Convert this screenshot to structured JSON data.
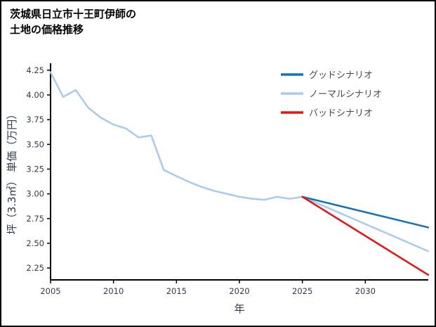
{
  "title": {
    "line1": "茨城県日立市十王町伊師の",
    "line2": "土地の価格推移"
  },
  "chart_data": {
    "type": "line",
    "title": "茨城県日立市十王町伊師の土地の価格推移",
    "xlabel": "年",
    "ylabel": "坪（3.3㎡） 単価（万円）",
    "xlim": [
      2005,
      2035
    ],
    "ylim": [
      2.13,
      4.32
    ],
    "xticks": [
      2005,
      2010,
      2015,
      2020,
      2025,
      2030
    ],
    "yticks": [
      2.25,
      2.5,
      2.75,
      3.0,
      3.25,
      3.5,
      3.75,
      4.0,
      4.25
    ],
    "grid": false,
    "legend_position": "upper right",
    "colors": {
      "good": "#1373b9",
      "normal": "#a7cbee",
      "bad": "#ee1111",
      "historical": "#a7cbee",
      "axis": "#000000"
    },
    "series": [
      {
        "id": "historical",
        "name": "",
        "color": "#a7cbee",
        "x": [
          2005,
          2006,
          2007,
          2008,
          2009,
          2010,
          2011,
          2012,
          2013,
          2014,
          2015,
          2016,
          2017,
          2018,
          2019,
          2020,
          2021,
          2022,
          2023,
          2024,
          2025
        ],
        "values": [
          4.23,
          3.98,
          4.05,
          3.87,
          3.77,
          3.7,
          3.66,
          3.57,
          3.59,
          3.24,
          3.18,
          3.12,
          3.07,
          3.03,
          3.0,
          2.97,
          2.95,
          2.94,
          2.97,
          2.95,
          2.97
        ]
      },
      {
        "id": "normal-scenario",
        "name": "ノーマルシナリオ",
        "color": "#a7cbee",
        "x": [
          2025,
          2035
        ],
        "values": [
          2.97,
          2.42
        ]
      },
      {
        "id": "good-scenario",
        "name": "グッドシナリオ",
        "color": "#1373b9",
        "x": [
          2025,
          2035
        ],
        "values": [
          2.97,
          2.66
        ]
      },
      {
        "id": "bad-scenario",
        "name": "バッドシナリオ",
        "color": "#ee1111",
        "x": [
          2025,
          2035
        ],
        "values": [
          2.97,
          2.18
        ]
      }
    ],
    "legend": [
      {
        "id": "good",
        "label": "グッドシナリオ",
        "color": "#1373b9"
      },
      {
        "id": "normal",
        "label": "ノーマルシナリオ",
        "color": "#a7cbee"
      },
      {
        "id": "bad",
        "label": "バッドシナリオ",
        "color": "#ee1111"
      }
    ]
  }
}
